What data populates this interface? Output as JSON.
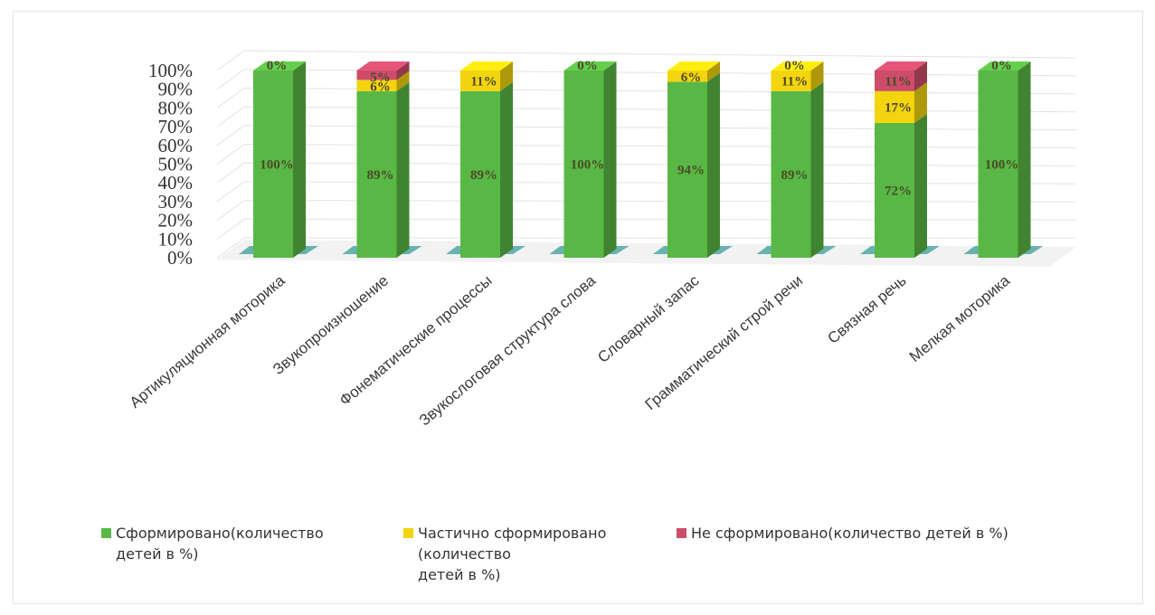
{
  "chart_data": {
    "type": "bar",
    "stacked": true,
    "three_d": true,
    "categories": [
      "Артикуляционная моторика",
      "Звукопроизношение",
      "Фонематические процессы",
      "Звукослоговая структура слова",
      "Словарный запас",
      "Грамматический строй речи",
      "Связная речь",
      "Мелкая моторика"
    ],
    "yticks": [
      "0%",
      "10%",
      "20%",
      "30%",
      "40%",
      "50%",
      "60%",
      "70%",
      "80%",
      "90%",
      "100%"
    ],
    "ylim": [
      0,
      100
    ],
    "grid": true,
    "legend_position": "bottom",
    "series": [
      {
        "name": "Сформировано(количество\nдетей в %)",
        "color": "#59b845",
        "values": [
          100,
          89,
          89,
          100,
          94,
          89,
          72,
          100
        ],
        "labels": [
          "100%",
          "89%",
          "89%",
          "100%",
          "94%",
          "89%",
          "72%",
          "100%"
        ]
      },
      {
        "name": "Частично  сформировано\n(количество\nдетей в %)",
        "color": "#f2d40f",
        "values": [
          0,
          6,
          11,
          0,
          6,
          11,
          17,
          0
        ],
        "labels": [
          "",
          "6%",
          "11%",
          "0%",
          "6%",
          "11%",
          "17%",
          ""
        ]
      },
      {
        "name": "Не сформировано(количество детей в %)",
        "color": "#cc4c6a",
        "values": [
          0,
          5,
          0,
          0,
          0,
          0,
          11,
          0
        ],
        "labels": [
          "0%",
          "5%",
          "",
          "",
          "",
          "0%",
          "11%",
          "0%"
        ]
      }
    ]
  }
}
